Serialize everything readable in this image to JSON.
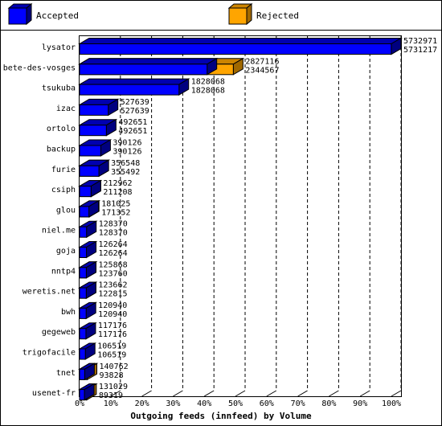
{
  "chart_data": {
    "type": "bar",
    "orientation": "horizontal",
    "style": "3d-overlapped",
    "title": "",
    "xlabel": "Outgoing feeds (innfeed) by Volume",
    "ylabel": "",
    "xlim": [
      0,
      100
    ],
    "x_ticks": [
      "0%",
      "10%",
      "20%",
      "30%",
      "40%",
      "50%",
      "60%",
      "70%",
      "80%",
      "90%",
      "100%"
    ],
    "grid": "vertical dashed",
    "legend_position": "top",
    "legend": [
      {
        "label": "Accepted",
        "color": "#0000ff"
      },
      {
        "label": "Rejected",
        "color": "#ffa500"
      }
    ],
    "categories": [
      "lysator",
      "bete-des-vosges",
      "tsukuba",
      "izac",
      "ortolo",
      "backup",
      "furie",
      "csiph",
      "glou",
      "niel.me",
      "goja",
      "nntp4",
      "weretis.net",
      "bwh",
      "gegeweb",
      "trigofacile",
      "tnet",
      "usenet-fr"
    ],
    "series": [
      {
        "name": "Accepted",
        "color": "#0000ff",
        "values": [
          5731217,
          2344567,
          1828068,
          527639,
          492651,
          390126,
          355492,
          211208,
          171352,
          128370,
          126264,
          123760,
          122815,
          120940,
          117176,
          106519,
          93828,
          89319
        ]
      },
      {
        "name": "Rejected",
        "color": "#ffa500",
        "values": [
          5732971,
          2827116,
          1828068,
          527639,
          492651,
          390126,
          356548,
          212962,
          181025,
          128370,
          126264,
          125868,
          123662,
          120940,
          117176,
          106519,
          140762,
          131029
        ]
      }
    ],
    "value_labels": [
      [
        "5732971",
        "5731217"
      ],
      [
        "2827116",
        "2344567"
      ],
      [
        "1828068",
        "1828068"
      ],
      [
        "527639",
        "527639"
      ],
      [
        "492651",
        "492651"
      ],
      [
        "390126",
        "390126"
      ],
      [
        "356548",
        "355492"
      ],
      [
        "212962",
        "211208"
      ],
      [
        "181025",
        "171352"
      ],
      [
        "128370",
        "128370"
      ],
      [
        "126264",
        "126264"
      ],
      [
        "125868",
        "123760"
      ],
      [
        "123662",
        "122815"
      ],
      [
        "120940",
        "120940"
      ],
      [
        "117176",
        "117176"
      ],
      [
        "106519",
        "106519"
      ],
      [
        "140762",
        "93828"
      ],
      [
        "131029",
        "89319"
      ]
    ]
  }
}
